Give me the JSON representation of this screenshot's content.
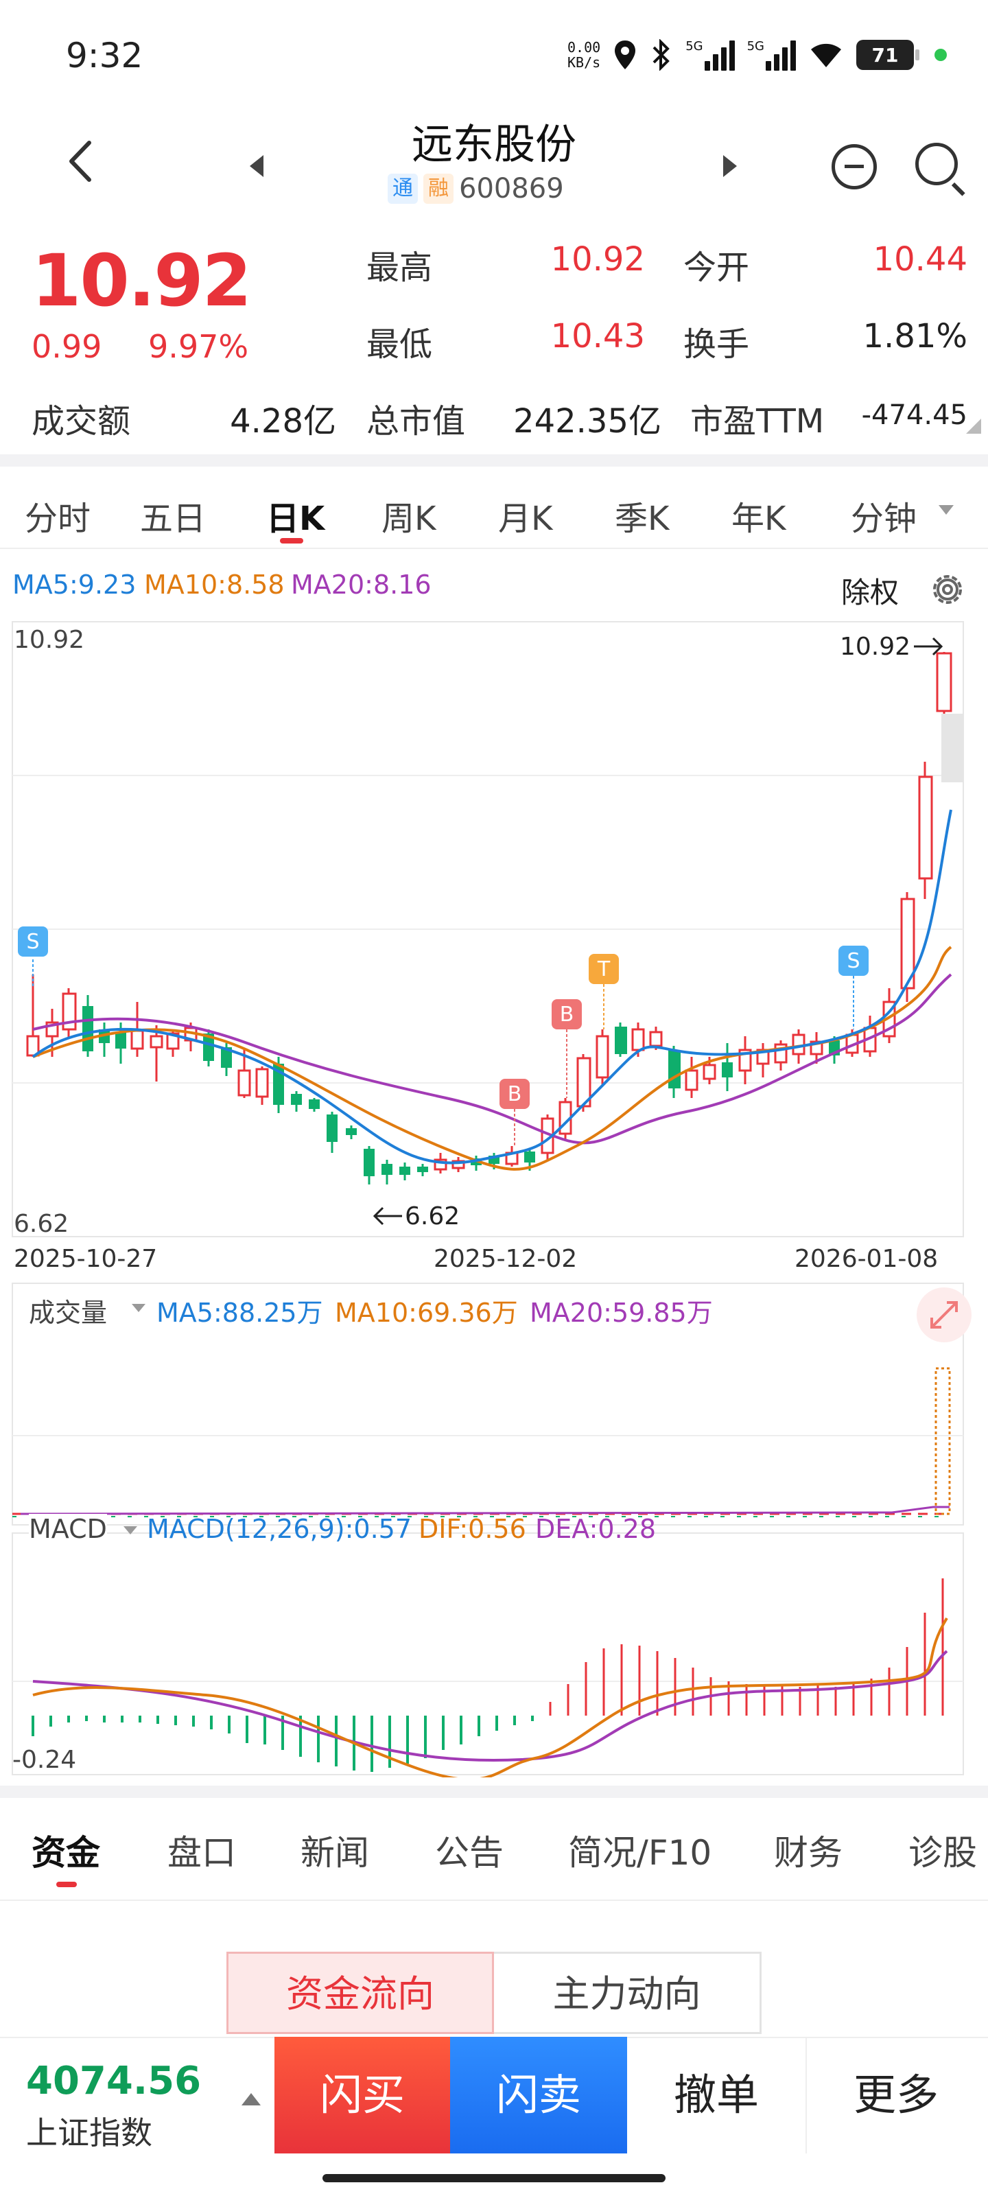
{
  "status_bar": {
    "time": "9:32",
    "net_speed": "0.00",
    "net_unit": "KB/s",
    "sim1": "5G",
    "sim2": "5G",
    "battery": "71"
  },
  "header": {
    "title": "远东股份",
    "badge_tong": "通",
    "badge_rong": "融",
    "code": "600869"
  },
  "quote": {
    "price": "10.92",
    "change": "0.99",
    "change_pct": "9.97%",
    "high_label": "最高",
    "high": "10.92",
    "open_label": "今开",
    "open": "10.44",
    "low_label": "最低",
    "low": "10.43",
    "turnover_label": "换手",
    "turnover": "1.81%",
    "amount_label": "成交额",
    "amount": "4.28亿",
    "mktcap_label": "总市值",
    "mktcap": "242.35亿",
    "pe_label": "市盈TTM",
    "pe": "-474.45"
  },
  "chart_tabs": [
    "分时",
    "五日",
    "日K",
    "周K",
    "月K",
    "季K",
    "年K",
    "分钟"
  ],
  "active_chart_tab": "日K",
  "kline": {
    "ma5": "MA5:9.23",
    "ma10": "MA10:8.58",
    "ma20": "MA20:8.16",
    "adjust": "除权",
    "top_value": "10.92",
    "bottom_value": "6.62",
    "high_marker": "10.92",
    "low_marker": "6.62",
    "dates": [
      "2025-10-27",
      "2025-12-02",
      "2026-01-08"
    ],
    "signals": [
      "S",
      "B",
      "B",
      "T",
      "S"
    ]
  },
  "volume": {
    "label": "成交量",
    "ma5": "MA5:88.25万",
    "ma10": "MA10:69.36万",
    "ma20": "MA20:59.85万"
  },
  "macd": {
    "label": "MACD",
    "macd": "MACD(12,26,9):0.57",
    "dif": "DIF:0.56",
    "dea": "DEA:0.28",
    "bottom_value": "-0.24"
  },
  "colors": {
    "up": "#e8333a",
    "down": "#0fae6c",
    "ma5": "#1f7fd8",
    "ma10": "#e07b10",
    "ma20": "#a23bb5"
  },
  "info_tabs": [
    "资金",
    "盘口",
    "新闻",
    "公告",
    "简况/F10",
    "财务",
    "诊股"
  ],
  "active_info_tab": "资金",
  "segment": {
    "left": "资金流向",
    "right": "主力动向"
  },
  "bottom_bar": {
    "index_value": "4074.56",
    "index_name": "上证指数",
    "buy": "闪买",
    "sell": "闪卖",
    "cancel": "撤单",
    "more": "更多"
  }
}
